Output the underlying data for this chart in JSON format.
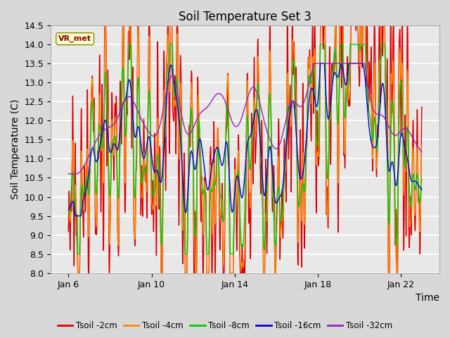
{
  "title": "Soil Temperature Set 3",
  "xlabel": "Time",
  "ylabel": "Soil Temperature (C)",
  "ylim": [
    8.0,
    14.5
  ],
  "yticks": [
    8.0,
    8.5,
    9.0,
    9.5,
    10.0,
    10.5,
    11.0,
    11.5,
    12.0,
    12.5,
    13.0,
    13.5,
    14.0,
    14.5
  ],
  "colors": {
    "Tsoil -2cm": "#dd0000",
    "Tsoil -4cm": "#ff8800",
    "Tsoil -8cm": "#00cc00",
    "Tsoil -16cm": "#0000dd",
    "Tsoil -32cm": "#9922bb"
  },
  "legend_labels": [
    "Tsoil -2cm",
    "Tsoil -4cm",
    "Tsoil -8cm",
    "Tsoil -16cm",
    "Tsoil -32cm"
  ],
  "vr_met_label": "VR_met",
  "bg_color": "#d8d8d8",
  "plot_bg": "#e8e8e8",
  "title_fontsize": 12,
  "axis_fontsize": 10,
  "tick_fontsize": 9
}
